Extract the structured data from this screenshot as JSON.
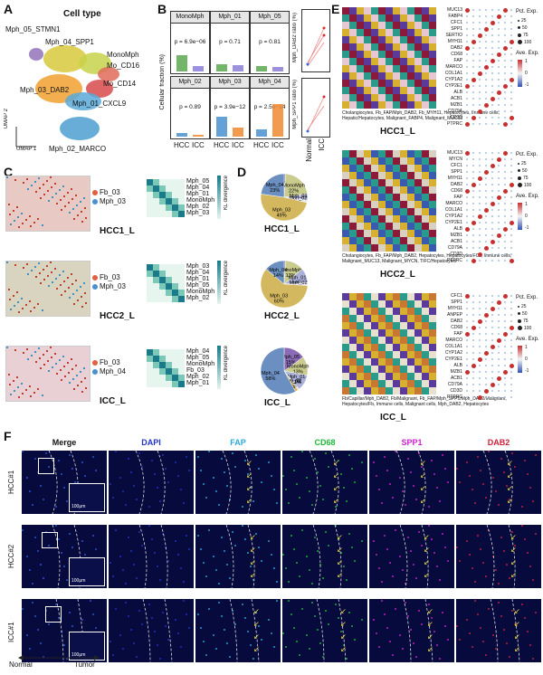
{
  "panels": {
    "A": {
      "label": "A",
      "title": "Cell type",
      "umap_x": "UMAP 1",
      "umap_y": "UMAP 2",
      "clusters": [
        {
          "label": "Mph_05_STMN1",
          "color": "#8b6bb5"
        },
        {
          "label": "Mph_04_SPP1",
          "color": "#d8c93c"
        },
        {
          "label": "MonoMph",
          "color": "#c7d24a"
        },
        {
          "label": "Mo_CD16",
          "color": "#e06b5b"
        },
        {
          "label": "Mo_CD14",
          "color": "#d84a4a"
        },
        {
          "label": "Mph_03_DAB2",
          "color": "#f0a030"
        },
        {
          "label": "Mph_01_CXCL9",
          "color": "#5aa9d8"
        },
        {
          "label": "Mph_02_MARCO",
          "color": "#4c9fd0"
        }
      ]
    },
    "B": {
      "label": "B",
      "ylabel": "Cellular fraction (%)",
      "x_categories": [
        "HCC",
        "ICC"
      ],
      "facets": [
        {
          "title": "MonoMph",
          "p": "p = 6.9e−06"
        },
        {
          "title": "Mph_01",
          "p": "p = 0.71"
        },
        {
          "title": "Mph_05",
          "p": "p = 0.81"
        },
        {
          "title": "Mph_02",
          "p": "p = 0.89"
        },
        {
          "title": "Mph_03",
          "p": "p = 3.9e−12"
        },
        {
          "title": "Mph_04",
          "p": "p = 2.5e−14"
        }
      ],
      "side_ylabels": [
        "Mph_DAB2 ratio (%)",
        "Mph_SPP1 ratio (%)"
      ],
      "side_x": [
        "Normal",
        "ICC"
      ]
    },
    "C": {
      "label": "C",
      "kl_label": "KL divergence",
      "rows": [
        {
          "legend": [
            "Fb_03",
            "Mph_03"
          ],
          "name": "HCC1_L",
          "heat_labels": [
            "Mph_05",
            "Mph_04",
            "Mph_01",
            "MonoMph",
            "Mph_02",
            "Mph_03"
          ]
        },
        {
          "legend": [
            "Fb_03",
            "Mph_03"
          ],
          "name": "HCC2_L",
          "heat_labels": [
            "Mph_03",
            "Mph_04",
            "Mph_01",
            "Mph_05",
            "MonoMph",
            "Mph_02"
          ]
        },
        {
          "legend": [
            "Fb_03",
            "Mph_04"
          ],
          "name": "ICC_L",
          "heat_labels": [
            "Mph_04",
            "Mph_05",
            "MonoMph",
            "Fb_03",
            "Mph_02",
            "Mph_01"
          ]
        }
      ]
    },
    "D": {
      "label": "D",
      "pies": [
        {
          "name": "HCC1_L",
          "slices": [
            {
              "label": "Mph_05",
              "value": 1,
              "color": "#8b6bb5"
            },
            {
              "label": "MonoMph",
              "value": 22,
              "color": "#c9cc8c"
            },
            {
              "label": "Mph_01",
              "value": 4,
              "color": "#aab0d8"
            },
            {
              "label": "Mph_02",
              "value": 2,
              "color": "#e8e8f0"
            },
            {
              "label": "Mph_03",
              "value": 49,
              "color": "#d4b860"
            },
            {
              "label": "Mph_04",
              "value": 23,
              "color": "#6a8fc0"
            }
          ]
        },
        {
          "name": "HCC2_L",
          "slices": [
            {
              "label": "Mph_05",
              "value": 1,
              "color": "#8b6bb5"
            },
            {
              "label": "MonoMph",
              "value": 13,
              "color": "#c9cc8c"
            },
            {
              "label": "Mph_01",
              "value": 10,
              "color": "#aab0d8"
            },
            {
              "label": "Mph_02",
              "value": 2,
              "color": "#e8e8f0"
            },
            {
              "label": "Mph_03",
              "value": 60,
              "color": "#d4b860"
            },
            {
              "label": "Mph_04",
              "value": 14,
              "color": "#6a8fc0"
            }
          ]
        },
        {
          "name": "ICC_L",
          "slices": [
            {
              "label": "Mph_05",
              "value": 15,
              "color": "#8b6bb5"
            },
            {
              "label": "MonoMph",
              "value": 13,
              "color": "#c9cc8c"
            },
            {
              "label": "Mph_01",
              "value": 11,
              "color": "#aab0d8"
            },
            {
              "label": "Mph_02",
              "value": 1,
              "color": "#e8e8f0"
            },
            {
              "label": "Mph_03",
              "value": 2,
              "color": "#d4b860"
            },
            {
              "label": "Mph_04",
              "value": 58,
              "color": "#6a8fc0"
            }
          ]
        }
      ]
    },
    "E": {
      "label": "E",
      "maps": [
        {
          "name": "HCC1_L",
          "legend": "Cholangiocytes, Fb_FAP/Mph_DAB2, Fb_MYH11, Hepatocytes, Immune cells, Hepatic/Hepatocytes, Malignant_FABP4, Malignant_MUC13",
          "genes": [
            "MUC13",
            "FABP4",
            "CFC1",
            "SPP1",
            "SERTIO",
            "MYH11",
            "DAB2",
            "CD68",
            "FAP",
            "MARCO",
            "COL1A1",
            "CYP1A2",
            "CYP2E1",
            "ALB",
            "ACB1",
            "MZB1",
            "CD79A",
            "CD3D",
            "PTPRC"
          ]
        },
        {
          "name": "HCC2_L",
          "legend": "Cholangiocytes, Fb_FAP/Mph_DAB2, Hepatocytes, Hepatocytes/FCs, Immune cells, Malignant_MUC13, Malignant_MYCN, TIFC/Hepatocytes",
          "genes": [
            "MUC13",
            "MYCN",
            "CFC1",
            "SPP1",
            "MYH11",
            "DAB2",
            "CD68",
            "FAP",
            "MARCO",
            "COL1A1",
            "CYP1A2",
            "CYP2E1",
            "ALB",
            "MZB1",
            "ACB1",
            "CD79A",
            "CD3D",
            "PTPRC"
          ]
        },
        {
          "name": "ICC_L",
          "legend": "Fb/Capillar/Mph_DAB2, Fb/Malignant, Fb_FAP/Mph_SPP1/Mph_DAB2/Malignant, Hepatocytes/Fb, Immune cells, Malignant cells, Mph_DAB2, Hepatocytes",
          "genes": [
            "CFC1",
            "SPP1",
            "MYH11",
            "ANPEP",
            "DAB2",
            "CD68",
            "FAP",
            "MARCO",
            "COL1A1",
            "CYP1A2",
            "CYP2E1",
            "ALB",
            "MZB1",
            "ACB1",
            "CD79A",
            "CD3D",
            "PTPRC"
          ]
        }
      ],
      "legend_pct": "Pct. Exp.",
      "legend_avg": "Ave. Exp.",
      "avg_ticks": [
        "1",
        "0",
        "-1"
      ],
      "pct_ticks": [
        "25",
        "50",
        "75",
        "100"
      ]
    },
    "F": {
      "label": "F",
      "columns": [
        {
          "name": "Merge",
          "color": "#111111"
        },
        {
          "name": "DAPI",
          "color": "#2233cc"
        },
        {
          "name": "FAP",
          "color": "#2aa8d8"
        },
        {
          "name": "CD68",
          "color": "#1db83a"
        },
        {
          "name": "SPP1",
          "color": "#d020d0"
        },
        {
          "name": "DAB2",
          "color": "#d01f3a"
        }
      ],
      "rows": [
        "HCC#1",
        "HCC#2",
        "ICC#1"
      ],
      "scale_labels": [
        "100μm",
        "100μm",
        "100μm"
      ],
      "arrow_left": "Normal",
      "arrow_right": "Tumor"
    }
  }
}
